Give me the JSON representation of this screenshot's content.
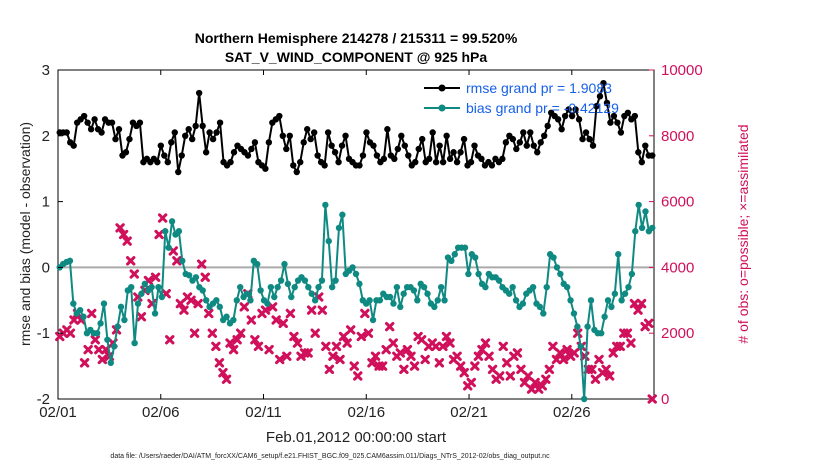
{
  "chart_data": {
    "type": "line",
    "title": "Northern Hemisphere 214278 / 215311 = 99.520%",
    "subtitle": "SAT_V_WIND_COMPONENT @ 925 hPa",
    "xlabel": "Feb.01,2012 00:00:00 start",
    "ylabel": "rmse and bias (model - observation)",
    "ylabel_right": "# of obs: o=possible; ×=assimilated",
    "xlim": [
      0,
      29
    ],
    "ylim": [
      -2,
      3
    ],
    "ylim_right": [
      0,
      10000
    ],
    "x_ticks": [
      0,
      5,
      10,
      15,
      20,
      25
    ],
    "x_tick_labels": [
      "02/01",
      "02/06",
      "02/11",
      "02/16",
      "02/21",
      "02/26"
    ],
    "y_ticks": [
      -2,
      -1,
      0,
      1,
      2,
      3
    ],
    "y_tick_labels": [
      "-2",
      "-1",
      "0",
      "1",
      "2",
      "3"
    ],
    "y_right_ticks": [
      0,
      2000,
      4000,
      6000,
      8000,
      10000
    ],
    "y_right_tick_labels": [
      "0",
      "2000",
      "4000",
      "6000",
      "8000",
      "10000"
    ],
    "zero_line": 0,
    "footnote": "data file: /Users/raeder/DAI/ATM_forcXX/CAM6_setup/f.e21.FHIST_BGC.f09_025.CAM6assim.011/Diags_NTrS_2012-02/obs_diag_output.nc",
    "colors": {
      "rmse": "#000000",
      "bias": "#0f8a82",
      "obs": "#d0105a",
      "legend_text": "#1760e8",
      "zero_line": "#aaaaaa"
    },
    "series": [
      {
        "name": "rmse grand pr = 1.9083",
        "axis": "left",
        "marker": "circle",
        "values": [
          2.05,
          2.05,
          2.05,
          1.9,
          1.85,
          2.2,
          2.25,
          2.3,
          2.2,
          2.1,
          2.25,
          2.1,
          2.05,
          2.25,
          2.2,
          2.2,
          1.95,
          2.1,
          1.7,
          1.75,
          1.95,
          2.2,
          2.15,
          2.2,
          1.6,
          1.65,
          1.6,
          1.65,
          1.6,
          1.85,
          1.7,
          1.6,
          1.9,
          2.05,
          1.45,
          1.7,
          2.0,
          2.1,
          1.95,
          2.15,
          2.65,
          2.15,
          1.75,
          2.05,
          1.95,
          2.05,
          2.2,
          1.6,
          1.55,
          1.6,
          1.75,
          1.85,
          1.8,
          1.75,
          1.7,
          1.8,
          1.9,
          1.6,
          1.55,
          1.5,
          1.9,
          2.2,
          2.25,
          2.3,
          2.0,
          1.8,
          2.0,
          1.55,
          1.45,
          1.6,
          1.9,
          2.1,
          1.95,
          2.05,
          1.7,
          1.6,
          1.55,
          2.05,
          1.85,
          1.75,
          1.6,
          1.85,
          2.0,
          1.65,
          1.6,
          1.55,
          1.55,
          1.7,
          2.05,
          1.9,
          1.85,
          1.7,
          1.6,
          1.65,
          2.1,
          1.7,
          1.65,
          1.8,
          2.0,
          1.85,
          1.7,
          1.55,
          1.6,
          1.8,
          1.95,
          1.6,
          1.65,
          2.05,
          1.6,
          1.85,
          1.6,
          2.0,
          1.65,
          1.75,
          1.6,
          1.75,
          1.95,
          1.55,
          1.6,
          1.85,
          1.7,
          1.65,
          1.55,
          1.6,
          1.55,
          1.65,
          1.6,
          1.65,
          1.9,
          2.0,
          1.95,
          1.8,
          1.9,
          2.05,
          1.85,
          2.05,
          1.85,
          1.75,
          1.9,
          2.0,
          2.15,
          2.35,
          2.3,
          2.25,
          2.1,
          2.3,
          2.4,
          2.3,
          2.4,
          2.25,
          1.95,
          2.05,
          1.95,
          1.85,
          2.45,
          2.6,
          2.8,
          2.5,
          2.2,
          2.3,
          2.2,
          2.05,
          2.3,
          2.35,
          2.25,
          2.3,
          1.75,
          1.6,
          1.85,
          1.7,
          1.7
        ]
      },
      {
        "name": "bias grand pr = -0.42129",
        "axis": "left",
        "marker": "circle",
        "values": [
          0.0,
          0.05,
          0.08,
          0.1,
          -0.55,
          -0.7,
          -0.65,
          -0.75,
          -1.0,
          -0.95,
          -1.0,
          -1.0,
          -0.85,
          -0.55,
          -1.1,
          -1.45,
          -1.2,
          -0.9,
          -0.6,
          -0.8,
          -0.35,
          -0.3,
          -1.15,
          -0.55,
          -0.4,
          -0.25,
          -0.35,
          -0.3,
          -0.7,
          -0.3,
          -0.45,
          0.55,
          0.3,
          0.7,
          0.5,
          0.55,
          0.1,
          -0.1,
          -0.12,
          -0.2,
          -0.15,
          -0.3,
          -0.35,
          -0.5,
          -0.6,
          -0.55,
          -0.5,
          -0.6,
          -0.8,
          -0.75,
          -0.85,
          -0.8,
          -0.5,
          -0.3,
          -0.45,
          -0.4,
          -0.5,
          0.1,
          0.05,
          -0.35,
          -0.5,
          -0.55,
          -0.3,
          -0.45,
          -0.3,
          -0.2,
          0.05,
          -0.25,
          -0.45,
          -0.3,
          -0.2,
          -0.15,
          -0.2,
          -0.3,
          -0.4,
          -0.5,
          -0.3,
          -0.2,
          0.95,
          0.4,
          -0.3,
          -0.2,
          0.6,
          0.8,
          -0.1,
          -0.05,
          0.0,
          -0.1,
          -0.25,
          -0.5,
          -0.55,
          -0.5,
          -0.8,
          -0.5,
          -0.5,
          -0.4,
          -0.45,
          -0.45,
          -0.55,
          -0.3,
          -0.6,
          -0.4,
          -0.3,
          -0.3,
          -0.35,
          -0.5,
          -0.25,
          -0.3,
          -0.4,
          -0.55,
          -0.6,
          -0.5,
          -0.3,
          -0.5,
          0.15,
          0.1,
          0.2,
          0.3,
          0.3,
          0.3,
          -0.1,
          0.2,
          0.15,
          -0.1,
          -0.25,
          -0.3,
          -0.1,
          -0.15,
          -0.15,
          -0.2,
          -0.3,
          -0.35,
          -0.4,
          -0.3,
          -0.5,
          -0.6,
          -0.55,
          -0.4,
          -0.35,
          -0.3,
          -0.55,
          -0.6,
          -0.7,
          -0.3,
          0.2,
          0.15,
          0.0,
          -0.1,
          -0.25,
          -0.3,
          -0.5,
          -0.7,
          -0.9,
          -1.2,
          -2.0,
          -0.9,
          -0.5,
          -0.95,
          -1.0,
          -1.0,
          -0.75,
          -0.5,
          -0.6,
          -0.4,
          0.2,
          -0.5,
          -0.4,
          -0.3,
          -0.1,
          0.55,
          0.95,
          0.6,
          0.85,
          0.55,
          0.6
        ]
      },
      {
        "name": "obs assimilated",
        "axis": "right",
        "marker": "x",
        "values": [
          1900,
          2000,
          2100,
          2000,
          2400,
          2600,
          2400,
          1100,
          1500,
          2600,
          1800,
          1500,
          1200,
          1500,
          1300,
          1700,
          2100,
          5200,
          5000,
          4800,
          4200,
          3800,
          3100,
          2500,
          3300,
          3600,
          2900,
          3700,
          5000,
          5500,
          3200,
          1800,
          4500,
          4200,
          2900,
          2700,
          3100,
          3000,
          2000,
          2900,
          4100,
          3700,
          2600,
          2000,
          1600,
          1100,
          800,
          600,
          1700,
          1500,
          1800,
          2000,
          2800,
          3200,
          2400,
          1800,
          1600,
          2600,
          2700,
          1500,
          2800,
          2400,
          1200,
          2300,
          1300,
          2600,
          1900,
          1700,
          1300,
          1400,
          1400,
          2700,
          2000,
          3100,
          2700,
          1600,
          900,
          1300,
          1600,
          1200,
          1900,
          1700,
          2100,
          1000,
          700,
          1900,
          2600,
          2000,
          1100,
          1300,
          1000,
          1000,
          1500,
          2200,
          1700,
          1300,
          1400,
          900,
          1500,
          1300,
          1000,
          1900,
          1800,
          1200,
          1600,
          1700,
          1600,
          1100,
          1600,
          1900,
          1700,
          1200,
          1300,
          1000,
          800,
          400,
          500,
          1000,
          1300,
          1500,
          1700,
          1300,
          900,
          600,
          700,
          1600,
          1100,
          700,
          1300,
          1400,
          900,
          500,
          700,
          300,
          500,
          300,
          400,
          600,
          900,
          1600,
          1200,
          1400,
          1200,
          1500,
          1300,
          1400,
          2000,
          1600,
          1300,
          900,
          900,
          600,
          1200,
          800,
          900,
          700,
          1400,
          1600,
          1600,
          2000,
          2000,
          1700,
          2900,
          2700,
          2900,
          2200,
          2300,
          0
        ]
      }
    ]
  }
}
